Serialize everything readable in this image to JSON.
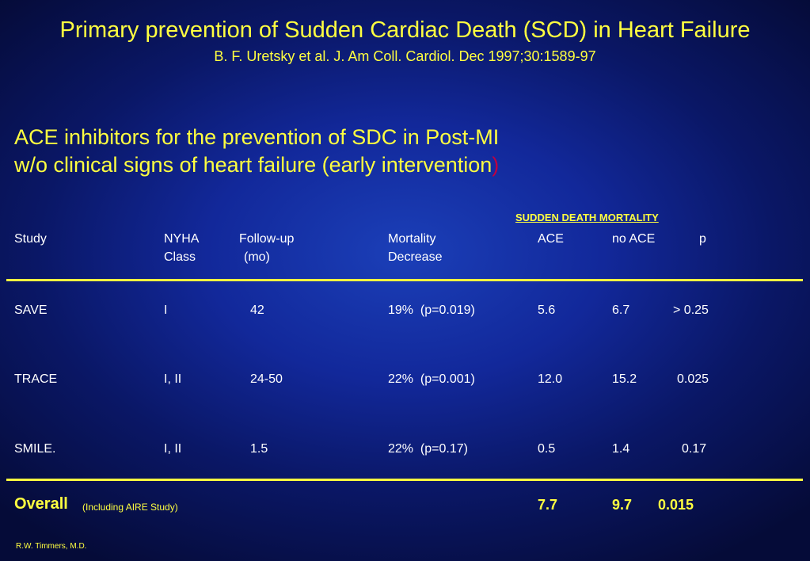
{
  "title": "Primary prevention of Sudden Cardiac Death (SCD) in Heart Failure",
  "citation": "B. F. Uretsky et al. J. Am Coll. Cardiol. Dec 1997;30:1589-97",
  "heading": {
    "line1": "ACE inhibitors for the prevention of SDC in Post-MI",
    "line2": "w/o clinical signs of heart failure (early intervention",
    "closing_paren": ")"
  },
  "group_header": "SUDDEN DEATH MORTALITY",
  "columns": {
    "study": "Study",
    "nyha_1": "NYHA",
    "nyha_2": "Class",
    "followup_1": "Follow-up",
    "followup_2": "(mo)",
    "mortality_1": "Mortality",
    "mortality_2": "Decrease",
    "ace": "ACE",
    "no_ace": "no ACE",
    "p": "p"
  },
  "rows": [
    {
      "study": "SAVE",
      "nyha": "I",
      "followup": "42",
      "mortality": "19%  (p=0.019)",
      "ace": "5.6",
      "no_ace": "6.7",
      "p": "> 0.25"
    },
    {
      "study": "TRACE",
      "nyha": "I, II",
      "followup": "24-50",
      "mortality": "22%  (p=0.001)",
      "ace": "12.0",
      "no_ace": "15.2",
      "p": "0.025"
    },
    {
      "study": "SMILE.",
      "nyha": "I, II",
      "followup": "1.5",
      "mortality": "22%  (p=0.17)",
      "ace": "0.5",
      "no_ace": "1.4",
      "p": "0.17"
    }
  ],
  "overall": {
    "label": "Overall",
    "note": "(Including AIRE Study)",
    "ace": "7.7",
    "no_ace": "9.7",
    "p": "0.015"
  },
  "credit": "R.W. Timmers, M.D.",
  "colors": {
    "accent_yellow": "#ffff40",
    "background": "#12289a"
  }
}
